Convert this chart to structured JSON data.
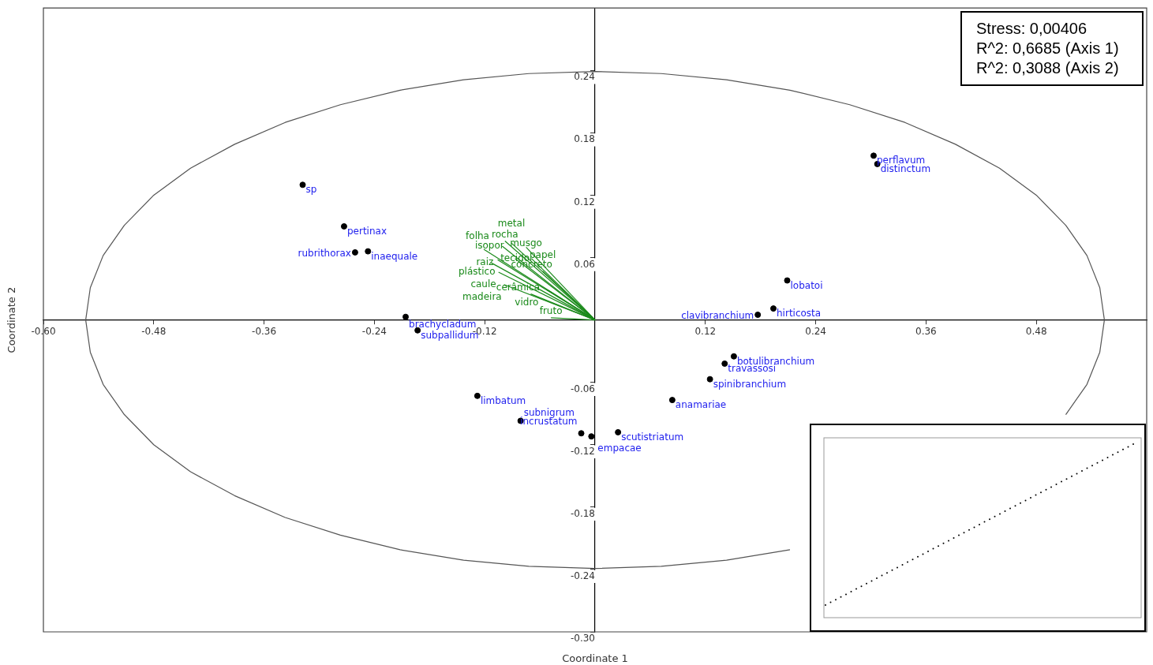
{
  "chart_data": {
    "type": "scatter",
    "xlabel": "Coordinate 1",
    "ylabel": "Coordinate 2",
    "xlim": [
      -0.6,
      0.6
    ],
    "ylim": [
      -0.3,
      0.3
    ],
    "xticks": [
      {
        "value": -0.6,
        "label": "-0.60"
      },
      {
        "value": -0.48,
        "label": "-0.48"
      },
      {
        "value": -0.36,
        "label": "-0.36"
      },
      {
        "value": -0.24,
        "label": "-0.24"
      },
      {
        "value": -0.12,
        "label": "-0.12"
      },
      {
        "value": 0.12,
        "label": "0.12"
      },
      {
        "value": 0.24,
        "label": "0.24"
      },
      {
        "value": 0.36,
        "label": "0.36"
      },
      {
        "value": 0.48,
        "label": "0.48"
      }
    ],
    "yticks": [
      {
        "value": -0.3,
        "label": "-0.30"
      },
      {
        "value": -0.24,
        "label": "-0.24"
      },
      {
        "value": -0.18,
        "label": "-0.18"
      },
      {
        "value": -0.12,
        "label": "-0.12"
      },
      {
        "value": -0.06,
        "label": "-0.06"
      },
      {
        "value": 0.06,
        "label": "0.06"
      },
      {
        "value": 0.12,
        "label": "0.12"
      },
      {
        "value": 0.18,
        "label": "0.18"
      },
      {
        "value": 0.24,
        "label": "0.24"
      }
    ],
    "annotations": [
      "Stress: 0,00406",
      "R^2: 0,6685 (Axis 1)",
      "R^2: 0,3088 (Axis 2)"
    ],
    "series": [
      {
        "marker": "circle",
        "color": "#000000",
        "x": [
          -0.318,
          -0.273,
          -0.247,
          -0.261,
          -0.206,
          -0.193,
          -0.128,
          -0.081,
          -0.015,
          -0.004,
          0.025,
          0.084,
          0.125,
          0.141,
          0.151,
          0.177,
          0.194,
          0.209,
          0.303,
          0.307
        ],
        "values": [
          0.13,
          0.09,
          0.066,
          0.065,
          0.003,
          -0.01,
          -0.073,
          -0.097,
          -0.109,
          -0.112,
          -0.108,
          -0.077,
          -0.057,
          -0.042,
          -0.035,
          0.005,
          0.011,
          0.038,
          0.158,
          0.15
        ],
        "value_labels": [
          "sp",
          "pertinax",
          "inaequale",
          "rubrithorax",
          "brachycladum",
          "subpallidum",
          "limbatum",
          "subnigrum",
          "incrustatum",
          "empacae",
          "scutistriatum",
          "anamariae",
          "spinibranchium",
          "travassosi",
          "botulibranchium",
          "clavibranchium",
          "hirticosta",
          "lobatoi",
          "perflavum",
          "distinctum"
        ]
      },
      {
        "type": "line",
        "color": "#555555",
        "x": [
          0.554,
          0.549,
          0.535,
          0.512,
          0.48,
          0.44,
          0.392,
          0.337,
          0.277,
          0.212,
          0.143,
          0.072,
          0,
          -0.072,
          -0.143,
          -0.212,
          -0.277,
          -0.337,
          -0.392,
          -0.44,
          -0.48,
          -0.512,
          -0.535,
          -0.549,
          -0.554,
          -0.549,
          -0.535,
          -0.512,
          -0.48,
          -0.44,
          -0.392,
          -0.337,
          -0.277,
          -0.212,
          -0.143,
          -0.072,
          0,
          0.072,
          0.143,
          0.212,
          0.277,
          0.337,
          0.392,
          0.44,
          0.48,
          0.512,
          0.535,
          0.549,
          0.554
        ],
        "values": [
          0,
          0.031,
          0.062,
          0.091,
          0.12,
          0.146,
          0.169,
          0.19,
          0.207,
          0.221,
          0.231,
          0.237,
          0.239,
          0.237,
          0.231,
          0.221,
          0.207,
          0.19,
          0.169,
          0.146,
          0.12,
          0.091,
          0.062,
          0.031,
          0,
          -0.031,
          -0.062,
          -0.091,
          -0.12,
          -0.146,
          -0.169,
          -0.19,
          -0.207,
          -0.221,
          -0.231,
          -0.237,
          -0.239,
          -0.237,
          -0.231,
          -0.221,
          null,
          null,
          null,
          null,
          null,
          -0.091,
          -0.062,
          -0.031,
          0
        ]
      },
      {
        "type": "line",
        "color": "#1a8a1a",
        "x": [
          0,
          -0.098
        ],
        "values": [
          0,
          0.076
        ],
        "value_labels": [
          null,
          "rocha"
        ]
      },
      {
        "type": "line",
        "color": "#1a8a1a",
        "x": [
          0,
          -0.101
        ],
        "values": [
          0,
          0.071
        ],
        "value_labels": [
          null,
          "isopor"
        ]
      },
      {
        "type": "line",
        "color": "#1a8a1a",
        "x": [
          0,
          -0.091
        ],
        "values": [
          0,
          0.074
        ],
        "value_labels": [
          null,
          "metal"
        ]
      },
      {
        "type": "line",
        "color": "#1a8a1a",
        "x": [
          0,
          -0.121
        ],
        "values": [
          0,
          0.068
        ],
        "value_labels": [
          null,
          "folha"
        ]
      },
      {
        "type": "line",
        "color": "#1a8a1a",
        "x": [
          0,
          -0.075
        ],
        "values": [
          0,
          0.07
        ],
        "value_labels": [
          null,
          "musgo"
        ]
      },
      {
        "type": "line",
        "color": "#1a8a1a",
        "x": [
          0,
          -0.113
        ],
        "values": [
          0,
          0.055
        ],
        "value_labels": [
          null,
          "raiz"
        ]
      },
      {
        "type": "line",
        "color": "#1a8a1a",
        "x": [
          0,
          -0.106
        ],
        "values": [
          0,
          0.058
        ],
        "value_labels": [
          null,
          "plástico"
        ]
      },
      {
        "type": "line",
        "color": "#1a8a1a",
        "x": [
          0,
          -0.087
        ],
        "values": [
          0,
          0.059
        ],
        "value_labels": [
          null,
          "tecido"
        ]
      },
      {
        "type": "line",
        "color": "#1a8a1a",
        "x": [
          0,
          -0.069
        ],
        "values": [
          0,
          0.059
        ],
        "value_labels": [
          null,
          "concreto"
        ]
      },
      {
        "type": "line",
        "color": "#1a8a1a",
        "x": [
          0,
          -0.105
        ],
        "values": [
          0,
          0.046
        ],
        "value_labels": [
          null,
          "caule"
        ]
      },
      {
        "type": "line",
        "color": "#1a8a1a",
        "x": [
          0,
          -0.057
        ],
        "values": [
          0,
          0.047
        ],
        "value_labels": [
          null,
          "papel"
        ]
      },
      {
        "type": "line",
        "color": "#1a8a1a",
        "x": [
          0,
          -0.099
        ],
        "values": [
          0,
          0.034
        ],
        "value_labels": [
          null,
          "madeira"
        ]
      },
      {
        "type": "line",
        "color": "#1a8a1a",
        "x": [
          0,
          -0.052
        ],
        "values": [
          0,
          0.029
        ],
        "value_labels": [
          null,
          "vidro"
        ]
      },
      {
        "type": "line",
        "color": "#1a8a1a",
        "x": [
          0,
          -0.07
        ],
        "values": [
          0,
          0.025
        ],
        "value_labels": [
          null,
          "cerâmica"
        ]
      },
      {
        "type": "line",
        "color": "#1a8a1a",
        "x": [
          0,
          -0.048
        ],
        "values": [
          0,
          0.002
        ],
        "value_labels": [
          null,
          "fruto"
        ]
      }
    ]
  }
}
